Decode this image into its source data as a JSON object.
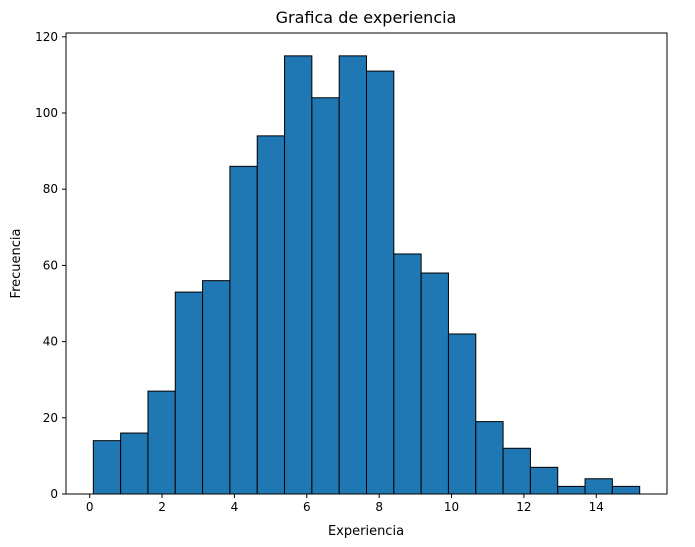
{
  "chart_data": {
    "type": "bar",
    "title": "Grafica de experiencia",
    "xlabel": "Experiencia",
    "ylabel": "Frecuencia",
    "bin_edges": [
      0.1,
      0.855,
      1.61,
      2.365,
      3.12,
      3.875,
      4.63,
      5.385,
      6.14,
      6.895,
      7.65,
      8.405,
      9.16,
      9.915,
      10.67,
      11.425,
      12.18,
      12.935,
      13.69,
      14.445,
      15.2
    ],
    "values": [
      14,
      16,
      27,
      53,
      56,
      86,
      94,
      115,
      104,
      115,
      111,
      63,
      58,
      42,
      19,
      12,
      7,
      2,
      4,
      2
    ],
    "xlim": [
      -0.655,
      15.955
    ],
    "ylim": [
      0,
      121
    ],
    "xticks": [
      0,
      2,
      4,
      6,
      8,
      10,
      12,
      14
    ],
    "yticks": [
      0,
      20,
      40,
      60,
      80,
      100,
      120
    ],
    "grid": false,
    "bar_color": "#1f77b4",
    "edge_color": "#000000"
  }
}
